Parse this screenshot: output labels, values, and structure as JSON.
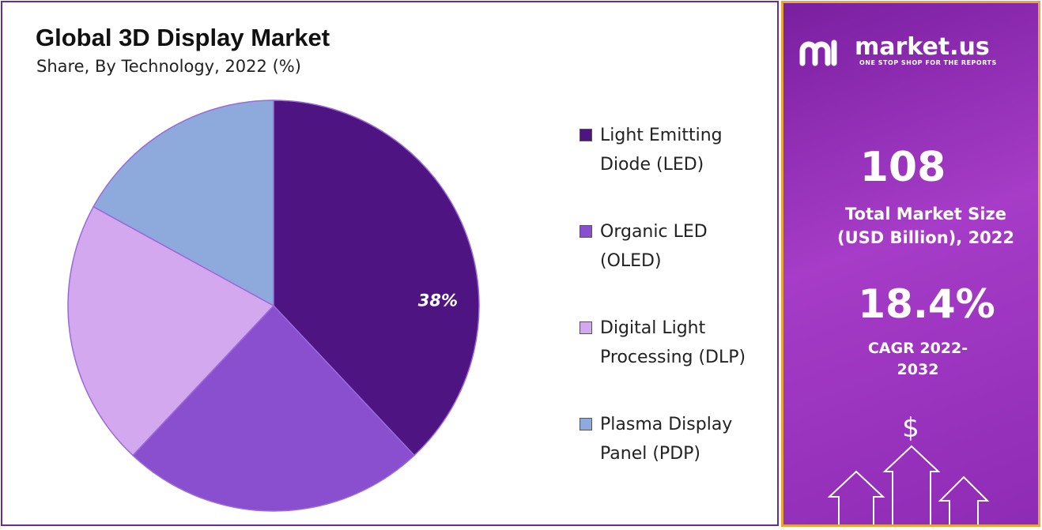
{
  "chart_data": {
    "type": "pie",
    "title": "Global 3D Display Market",
    "subtitle": "Share, By Technology, 2022 (%)",
    "categories": [
      "Light Emitting Diode (LED)",
      "Organic LED (OLED)",
      "Digital Light Processing (DLP)",
      "Plasma Display Panel (PDP)"
    ],
    "values": [
      38,
      24,
      21,
      17
    ],
    "value_labels": [
      "38%",
      null,
      null,
      null
    ],
    "colors": [
      "#4e1582",
      "#8a4fcf",
      "#d3a8ee",
      "#8eaadc"
    ]
  },
  "panel": {
    "brand": "market.us",
    "tagline": "ONE STOP SHOP FOR THE REPORTS",
    "market_size": "108",
    "market_size_label": "Total Market Size (USD Billion), 2022",
    "cagr": "18.4%",
    "cagr_label": "CAGR 2022-2032",
    "currency": "$"
  }
}
